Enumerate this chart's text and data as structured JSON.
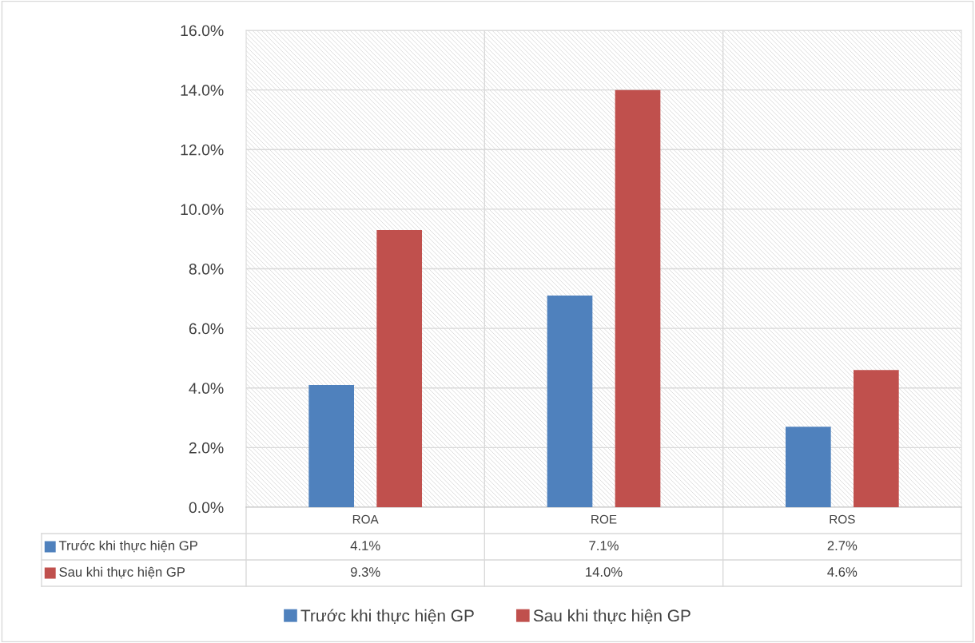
{
  "chart_data": {
    "type": "bar",
    "categories": [
      "ROA",
      "ROE",
      "ROS"
    ],
    "series": [
      {
        "name": "Trước khi thực hiện GP",
        "color": "#4f81bd",
        "values": [
          4.1,
          7.1,
          2.7
        ],
        "value_labels": [
          "4.1%",
          "7.1%",
          "2.7%"
        ]
      },
      {
        "name": "Sau khi thực hiện GP",
        "color": "#c0504d",
        "values": [
          9.3,
          14.0,
          4.6
        ],
        "value_labels": [
          "9.3%",
          "14.0%",
          "4.6%"
        ]
      }
    ],
    "ylim": [
      0,
      16
    ],
    "yticks": [
      {
        "value": 0,
        "label": "0.0%"
      },
      {
        "value": 2,
        "label": "2.0%"
      },
      {
        "value": 4,
        "label": "4.0%"
      },
      {
        "value": 6,
        "label": "6.0%"
      },
      {
        "value": 8,
        "label": "8.0%"
      },
      {
        "value": 10,
        "label": "10.0%"
      },
      {
        "value": 12,
        "label": "12.0%"
      },
      {
        "value": 14,
        "label": "14.0%"
      },
      {
        "value": 16,
        "label": "16.0%"
      }
    ],
    "grid": "y",
    "legend": "bottom"
  }
}
